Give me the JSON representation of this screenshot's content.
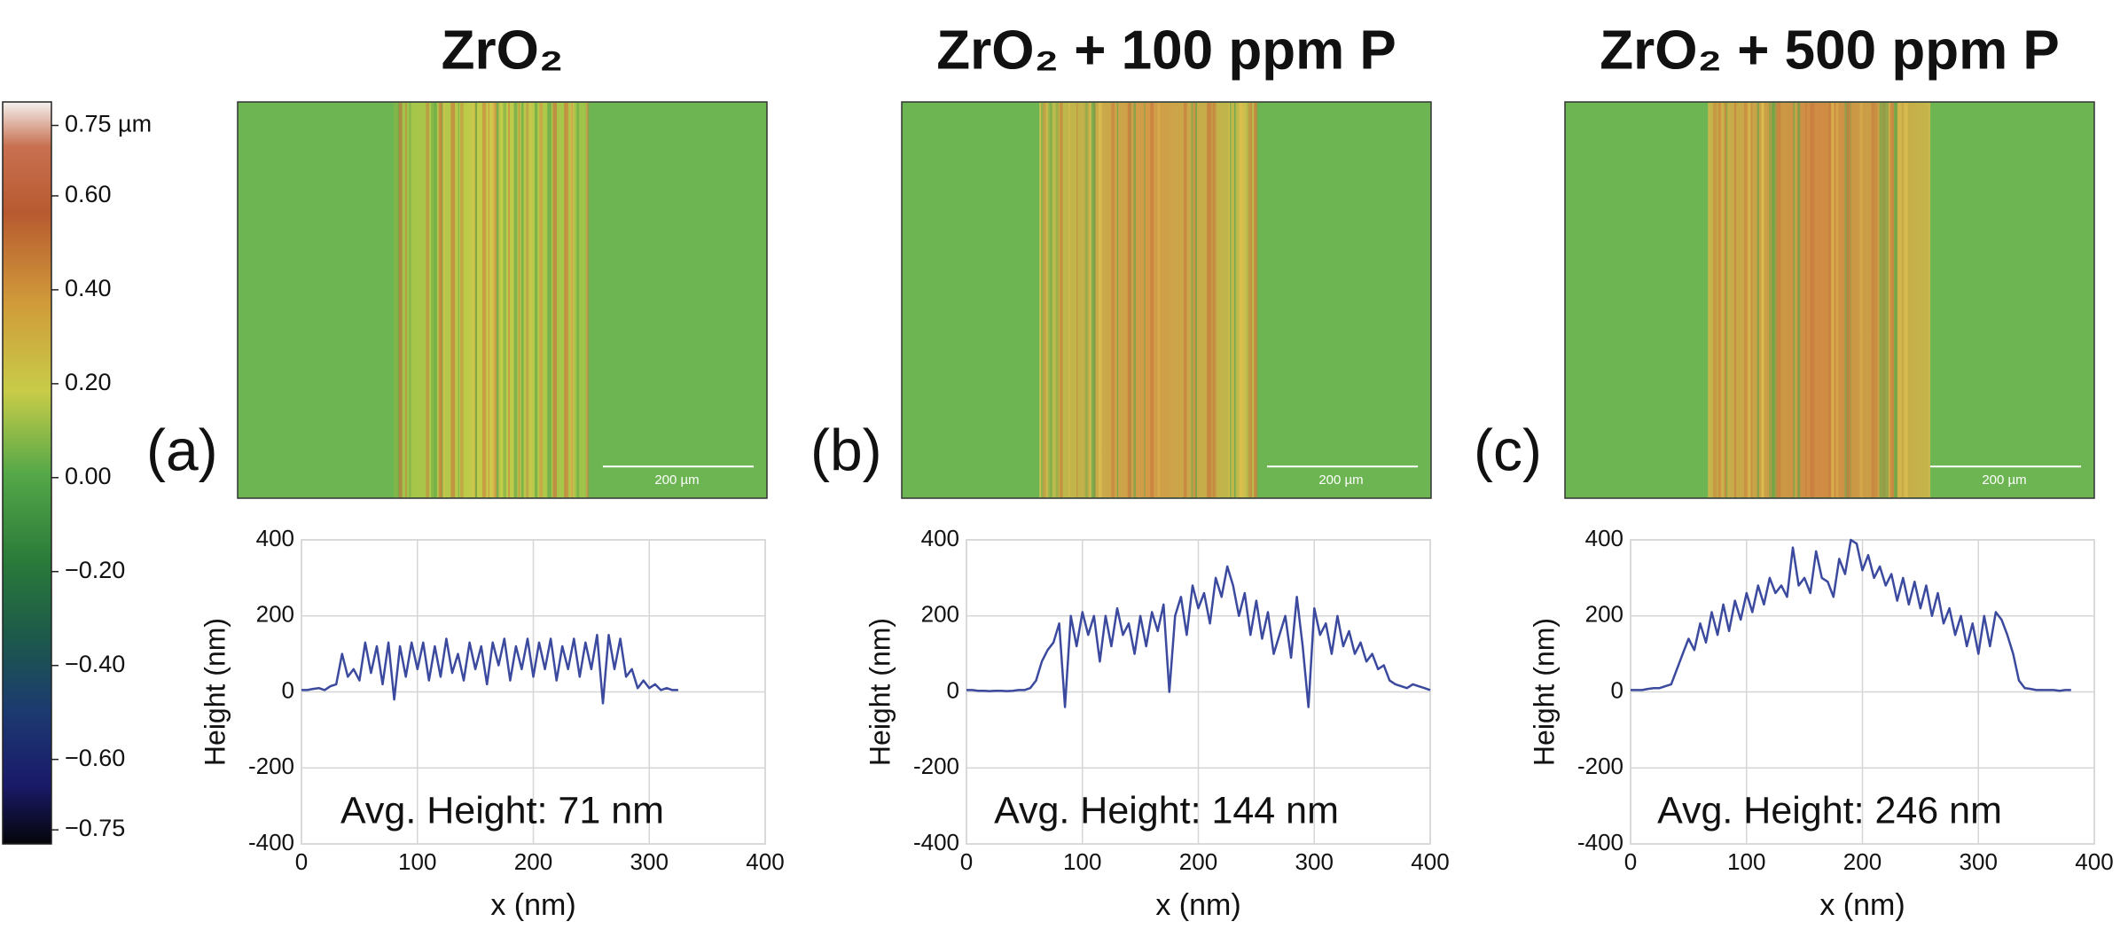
{
  "colorbar": {
    "lim": [
      -0.78,
      0.8
    ],
    "ticks": [
      {
        "value": 0.75,
        "label": "0.75 µm"
      },
      {
        "value": 0.6,
        "label": "0.60"
      },
      {
        "value": 0.4,
        "label": "0.40"
      },
      {
        "value": 0.2,
        "label": "0.20"
      },
      {
        "value": 0,
        "label": "0.00"
      },
      {
        "value": -0.2,
        "label": "−0.20"
      },
      {
        "value": -0.4,
        "label": "−0.40"
      },
      {
        "value": -0.6,
        "label": "−0.60"
      },
      {
        "value": -0.75,
        "label": "−0.75"
      }
    ]
  },
  "chart_data": [
    {
      "type": "line",
      "title": "ZrO₂",
      "panel": "(a)",
      "scale_bar": "200 µm",
      "annotation": "Avg. Height: 71 nm",
      "x_label": "x (nm)",
      "y_label": "Height (nm)",
      "x": [
        0,
        5,
        10,
        15,
        20,
        25,
        30,
        35,
        40,
        45,
        50,
        55,
        60,
        65,
        70,
        75,
        80,
        85,
        90,
        95,
        100,
        105,
        110,
        115,
        120,
        125,
        130,
        135,
        140,
        145,
        150,
        155,
        160,
        165,
        170,
        175,
        180,
        185,
        190,
        195,
        200,
        205,
        210,
        215,
        220,
        225,
        230,
        235,
        240,
        245,
        250,
        255,
        260,
        265,
        270,
        275,
        280,
        285,
        290,
        295,
        300,
        305,
        310,
        315,
        320,
        325
      ],
      "series": [
        {
          "color": "#3b4a9e",
          "values": [
            5,
            5,
            8,
            10,
            5,
            15,
            20,
            100,
            40,
            60,
            30,
            130,
            50,
            120,
            20,
            130,
            -20,
            120,
            40,
            130,
            60,
            130,
            30,
            120,
            40,
            140,
            50,
            100,
            30,
            130,
            60,
            120,
            20,
            130,
            70,
            140,
            30,
            120,
            60,
            140,
            40,
            130,
            60,
            140,
            30,
            120,
            60,
            140,
            40,
            130,
            60,
            150,
            -30,
            150,
            60,
            140,
            40,
            60,
            10,
            30,
            10,
            20,
            5,
            10,
            5,
            5
          ]
        }
      ],
      "xlim": [
        0,
        400
      ],
      "ylim": [
        -400,
        400
      ],
      "xticks": [
        0,
        100,
        200,
        300,
        400
      ],
      "yticks": [
        -400,
        -200,
        0,
        200,
        400
      ],
      "grid": true
    },
    {
      "type": "line",
      "title": "ZrO₂ + 100 ppm P",
      "panel": "(b)",
      "scale_bar": "200 µm",
      "annotation": "Avg. Height: 144 nm",
      "x_label": "x (nm)",
      "y_label": "Height (nm)",
      "x": [
        0,
        5,
        10,
        15,
        20,
        25,
        30,
        35,
        40,
        45,
        50,
        55,
        60,
        65,
        70,
        75,
        80,
        85,
        90,
        95,
        100,
        105,
        110,
        115,
        120,
        125,
        130,
        135,
        140,
        145,
        150,
        155,
        160,
        165,
        170,
        175,
        180,
        185,
        190,
        195,
        200,
        205,
        210,
        215,
        220,
        225,
        230,
        235,
        240,
        245,
        250,
        255,
        260,
        265,
        270,
        275,
        280,
        285,
        290,
        295,
        300,
        305,
        310,
        315,
        320,
        325,
        330,
        335,
        340,
        345,
        350,
        355,
        360,
        365,
        370,
        375,
        380,
        385,
        390,
        395,
        400
      ],
      "series": [
        {
          "color": "#3b4a9e",
          "values": [
            5,
            5,
            3,
            3,
            2,
            3,
            3,
            2,
            3,
            5,
            5,
            10,
            30,
            80,
            110,
            130,
            180,
            -40,
            200,
            120,
            210,
            150,
            200,
            80,
            200,
            120,
            220,
            150,
            180,
            100,
            200,
            120,
            210,
            160,
            230,
            0,
            200,
            250,
            150,
            280,
            220,
            260,
            180,
            300,
            250,
            330,
            280,
            200,
            260,
            150,
            240,
            140,
            210,
            100,
            150,
            200,
            90,
            250,
            120,
            -40,
            220,
            150,
            180,
            100,
            200,
            120,
            160,
            100,
            130,
            80,
            100,
            60,
            70,
            30,
            20,
            15,
            10,
            20,
            15,
            10,
            5
          ]
        }
      ],
      "xlim": [
        0,
        400
      ],
      "ylim": [
        -400,
        400
      ],
      "xticks": [
        0,
        100,
        200,
        300,
        400
      ],
      "yticks": [
        -400,
        -200,
        0,
        200,
        400
      ],
      "grid": true
    },
    {
      "type": "line",
      "title": "ZrO₂ + 500 ppm P",
      "panel": "(c)",
      "scale_bar": "200 µm",
      "annotation": "Avg. Height: 246 nm",
      "x_label": "x (nm)",
      "y_label": "Height (nm)",
      "x": [
        0,
        5,
        10,
        15,
        20,
        25,
        30,
        35,
        40,
        45,
        50,
        55,
        60,
        65,
        70,
        75,
        80,
        85,
        90,
        95,
        100,
        105,
        110,
        115,
        120,
        125,
        130,
        135,
        140,
        145,
        150,
        155,
        160,
        165,
        170,
        175,
        180,
        185,
        190,
        195,
        200,
        205,
        210,
        215,
        220,
        225,
        230,
        235,
        240,
        245,
        250,
        255,
        260,
        265,
        270,
        275,
        280,
        285,
        290,
        295,
        300,
        305,
        310,
        315,
        320,
        325,
        330,
        335,
        340,
        345,
        350,
        355,
        360,
        365,
        370,
        375,
        380
      ],
      "series": [
        {
          "color": "#3b4a9e",
          "values": [
            5,
            5,
            5,
            8,
            10,
            10,
            15,
            20,
            60,
            100,
            140,
            110,
            180,
            130,
            210,
            150,
            230,
            160,
            240,
            190,
            260,
            210,
            280,
            230,
            300,
            260,
            280,
            250,
            380,
            280,
            300,
            260,
            370,
            300,
            290,
            250,
            350,
            310,
            400,
            390,
            320,
            360,
            300,
            330,
            280,
            310,
            240,
            300,
            230,
            290,
            220,
            280,
            200,
            260,
            180,
            220,
            150,
            200,
            120,
            180,
            100,
            200,
            120,
            210,
            190,
            150,
            100,
            30,
            10,
            8,
            5,
            5,
            5,
            5,
            3,
            5,
            5
          ]
        }
      ],
      "xlim": [
        0,
        400
      ],
      "ylim": [
        -400,
        400
      ],
      "xticks": [
        0,
        100,
        200,
        300,
        400
      ],
      "yticks": [
        -400,
        -200,
        0,
        200,
        400
      ],
      "grid": true
    }
  ]
}
